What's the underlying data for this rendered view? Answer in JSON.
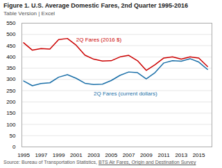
{
  "chart_data": {
    "type": "line",
    "title": "Figure 1. U.S. Average Domestic Fares, 2nd Quarter 1995-2016",
    "subtitle": "Table Version | Excel",
    "source": "Source: Bureau of Transportation Statistics, ",
    "source_link": "BTS Air Fares, Origin and Destination Survey",
    "x": [
      1995,
      1996,
      1997,
      1998,
      1999,
      2000,
      2001,
      2002,
      2003,
      2004,
      2005,
      2006,
      2007,
      2008,
      2009,
      2010,
      2011,
      2012,
      2013,
      2014,
      2015,
      2016
    ],
    "series": [
      {
        "name": "2Q Fares (2016 $)",
        "color": "#cc0000",
        "values": [
          463,
          430,
          437,
          435,
          477,
          482,
          452,
          408,
          390,
          382,
          383,
          400,
          407,
          383,
          340,
          365,
          395,
          400,
          390,
          400,
          395,
          357
        ]
      },
      {
        "name": "2Q Fares (current dollars)",
        "color": "#1a6fa8",
        "values": [
          293,
          272,
          282,
          285,
          310,
          321,
          305,
          283,
          277,
          279,
          295,
          318,
          333,
          330,
          302,
          330,
          373,
          383,
          381,
          392,
          377,
          344
        ]
      }
    ],
    "xlim": [
      1994.8,
      2016.5
    ],
    "xticks": [
      1995,
      1997,
      1999,
      2001,
      2003,
      2005,
      2007,
      2009,
      2011,
      2013,
      2015
    ],
    "ylim": [
      0,
      550
    ],
    "yticks": [
      0,
      50,
      100,
      150,
      200,
      250,
      300,
      350,
      400,
      450,
      500,
      550
    ],
    "grid": true
  }
}
